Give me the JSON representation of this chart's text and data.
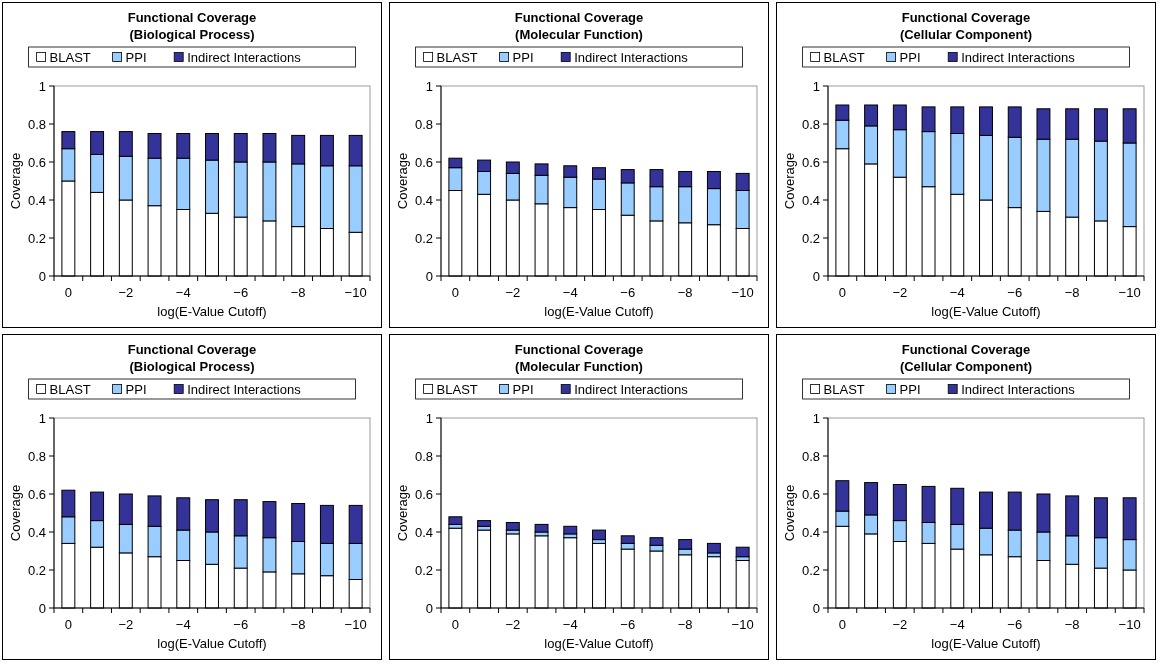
{
  "chart_data": [
    {
      "type": "bar",
      "stacked": true,
      "title": "Functional Coverage",
      "subtitle": "(Biological Process)",
      "xlabel": "log(E-Value Cutoff)",
      "ylabel": "Coverage",
      "categories": [
        "0",
        null,
        "−2",
        null,
        "−4",
        null,
        "−6",
        null,
        "−8",
        null,
        "−10"
      ],
      "ylim": [
        0,
        1
      ],
      "yticks": [
        0,
        0.2,
        0.4,
        0.6,
        0.8,
        1
      ],
      "legend": "top",
      "series": [
        {
          "name": "BLAST",
          "color": "#ffffff",
          "values": [
            0.5,
            0.44,
            0.4,
            0.37,
            0.35,
            0.33,
            0.31,
            0.29,
            0.26,
            0.25,
            0.23
          ]
        },
        {
          "name": "PPI",
          "color": "#99ccff",
          "values": [
            0.17,
            0.2,
            0.23,
            0.25,
            0.27,
            0.28,
            0.29,
            0.31,
            0.33,
            0.33,
            0.35
          ]
        },
        {
          "name": "Indirect Interactions",
          "color": "#333399",
          "values": [
            0.09,
            0.12,
            0.13,
            0.13,
            0.13,
            0.14,
            0.15,
            0.15,
            0.15,
            0.16,
            0.16
          ]
        }
      ]
    },
    {
      "type": "bar",
      "stacked": true,
      "title": "Functional Coverage",
      "subtitle": "(Molecular Function)",
      "xlabel": "log(E-Value Cutoff)",
      "ylabel": "Coverage",
      "categories": [
        "0",
        null,
        "−2",
        null,
        "−4",
        null,
        "−6",
        null,
        "−8",
        null,
        "−10"
      ],
      "ylim": [
        0,
        1
      ],
      "yticks": [
        0,
        0.2,
        0.4,
        0.6,
        0.8,
        1
      ],
      "legend": "top",
      "series": [
        {
          "name": "BLAST",
          "color": "#ffffff",
          "values": [
            0.45,
            0.43,
            0.4,
            0.38,
            0.36,
            0.35,
            0.32,
            0.29,
            0.28,
            0.27,
            0.25
          ]
        },
        {
          "name": "PPI",
          "color": "#99ccff",
          "values": [
            0.12,
            0.12,
            0.14,
            0.15,
            0.16,
            0.16,
            0.17,
            0.18,
            0.19,
            0.19,
            0.2
          ]
        },
        {
          "name": "Indirect Interactions",
          "color": "#333399",
          "values": [
            0.05,
            0.06,
            0.06,
            0.06,
            0.06,
            0.06,
            0.07,
            0.09,
            0.08,
            0.09,
            0.09
          ]
        }
      ]
    },
    {
      "type": "bar",
      "stacked": true,
      "title": "Functional Coverage",
      "subtitle": "(Cellular Component)",
      "xlabel": "log(E-Value Cutoff)",
      "ylabel": "Coverage",
      "categories": [
        "0",
        null,
        "−2",
        null,
        "−4",
        null,
        "−6",
        null,
        "−8",
        null,
        "−10"
      ],
      "ylim": [
        0,
        1
      ],
      "yticks": [
        0,
        0.2,
        0.4,
        0.6,
        0.8,
        1
      ],
      "legend": "top",
      "series": [
        {
          "name": "BLAST",
          "color": "#ffffff",
          "values": [
            0.67,
            0.59,
            0.52,
            0.47,
            0.43,
            0.4,
            0.36,
            0.34,
            0.31,
            0.29,
            0.26
          ]
        },
        {
          "name": "PPI",
          "color": "#99ccff",
          "values": [
            0.15,
            0.2,
            0.25,
            0.29,
            0.32,
            0.34,
            0.37,
            0.38,
            0.41,
            0.42,
            0.44
          ]
        },
        {
          "name": "Indirect Interactions",
          "color": "#333399",
          "values": [
            0.08,
            0.11,
            0.13,
            0.13,
            0.14,
            0.15,
            0.16,
            0.16,
            0.16,
            0.17,
            0.18
          ]
        }
      ]
    },
    {
      "type": "bar",
      "stacked": true,
      "title": "Functional Coverage",
      "subtitle": "(Biological Process)",
      "xlabel": "log(E-Value Cutoff)",
      "ylabel": "Coverage",
      "categories": [
        "0",
        null,
        "−2",
        null,
        "−4",
        null,
        "−6",
        null,
        "−8",
        null,
        "−10"
      ],
      "ylim": [
        0,
        1
      ],
      "yticks": [
        0,
        0.2,
        0.4,
        0.6,
        0.8,
        1
      ],
      "legend": "top",
      "series": [
        {
          "name": "BLAST",
          "color": "#ffffff",
          "values": [
            0.34,
            0.32,
            0.29,
            0.27,
            0.25,
            0.23,
            0.21,
            0.19,
            0.18,
            0.17,
            0.15
          ]
        },
        {
          "name": "PPI",
          "color": "#99ccff",
          "values": [
            0.14,
            0.14,
            0.15,
            0.16,
            0.16,
            0.17,
            0.17,
            0.18,
            0.17,
            0.17,
            0.19
          ]
        },
        {
          "name": "Indirect Interactions",
          "color": "#333399",
          "values": [
            0.14,
            0.15,
            0.16,
            0.16,
            0.17,
            0.17,
            0.19,
            0.19,
            0.2,
            0.2,
            0.2
          ]
        }
      ]
    },
    {
      "type": "bar",
      "stacked": true,
      "title": "Functional Coverage",
      "subtitle": "(Molecular Function)",
      "xlabel": "log(E-Value Cutoff)",
      "ylabel": "Coverage",
      "categories": [
        "0",
        null,
        "−2",
        null,
        "−4",
        null,
        "−6",
        null,
        "−8",
        null,
        "−10"
      ],
      "ylim": [
        0,
        1
      ],
      "yticks": [
        0,
        0.2,
        0.4,
        0.6,
        0.8,
        1
      ],
      "legend": "top",
      "series": [
        {
          "name": "BLAST",
          "color": "#ffffff",
          "values": [
            0.42,
            0.41,
            0.39,
            0.38,
            0.37,
            0.34,
            0.31,
            0.3,
            0.28,
            0.27,
            0.25
          ]
        },
        {
          "name": "PPI",
          "color": "#99ccff",
          "values": [
            0.02,
            0.02,
            0.02,
            0.02,
            0.02,
            0.02,
            0.03,
            0.03,
            0.03,
            0.02,
            0.02
          ]
        },
        {
          "name": "Indirect Interactions",
          "color": "#333399",
          "values": [
            0.04,
            0.03,
            0.04,
            0.04,
            0.04,
            0.05,
            0.04,
            0.04,
            0.05,
            0.05,
            0.05
          ]
        }
      ]
    },
    {
      "type": "bar",
      "stacked": true,
      "title": "Functional Coverage",
      "subtitle": "(Cellular Component)",
      "xlabel": "log(E-Value Cutoff)",
      "ylabel": "Coverage",
      "categories": [
        "0",
        null,
        "−2",
        null,
        "−4",
        null,
        "−6",
        null,
        "−8",
        null,
        "−10"
      ],
      "ylim": [
        0,
        1
      ],
      "yticks": [
        0,
        0.2,
        0.4,
        0.6,
        0.8,
        1
      ],
      "legend": "top",
      "series": [
        {
          "name": "BLAST",
          "color": "#ffffff",
          "values": [
            0.43,
            0.39,
            0.35,
            0.34,
            0.31,
            0.28,
            0.27,
            0.25,
            0.23,
            0.21,
            0.2
          ]
        },
        {
          "name": "PPI",
          "color": "#99ccff",
          "values": [
            0.08,
            0.1,
            0.11,
            0.11,
            0.13,
            0.14,
            0.14,
            0.15,
            0.15,
            0.16,
            0.16
          ]
        },
        {
          "name": "Indirect Interactions",
          "color": "#333399",
          "values": [
            0.16,
            0.17,
            0.19,
            0.19,
            0.19,
            0.19,
            0.2,
            0.2,
            0.21,
            0.21,
            0.22
          ]
        }
      ]
    }
  ]
}
